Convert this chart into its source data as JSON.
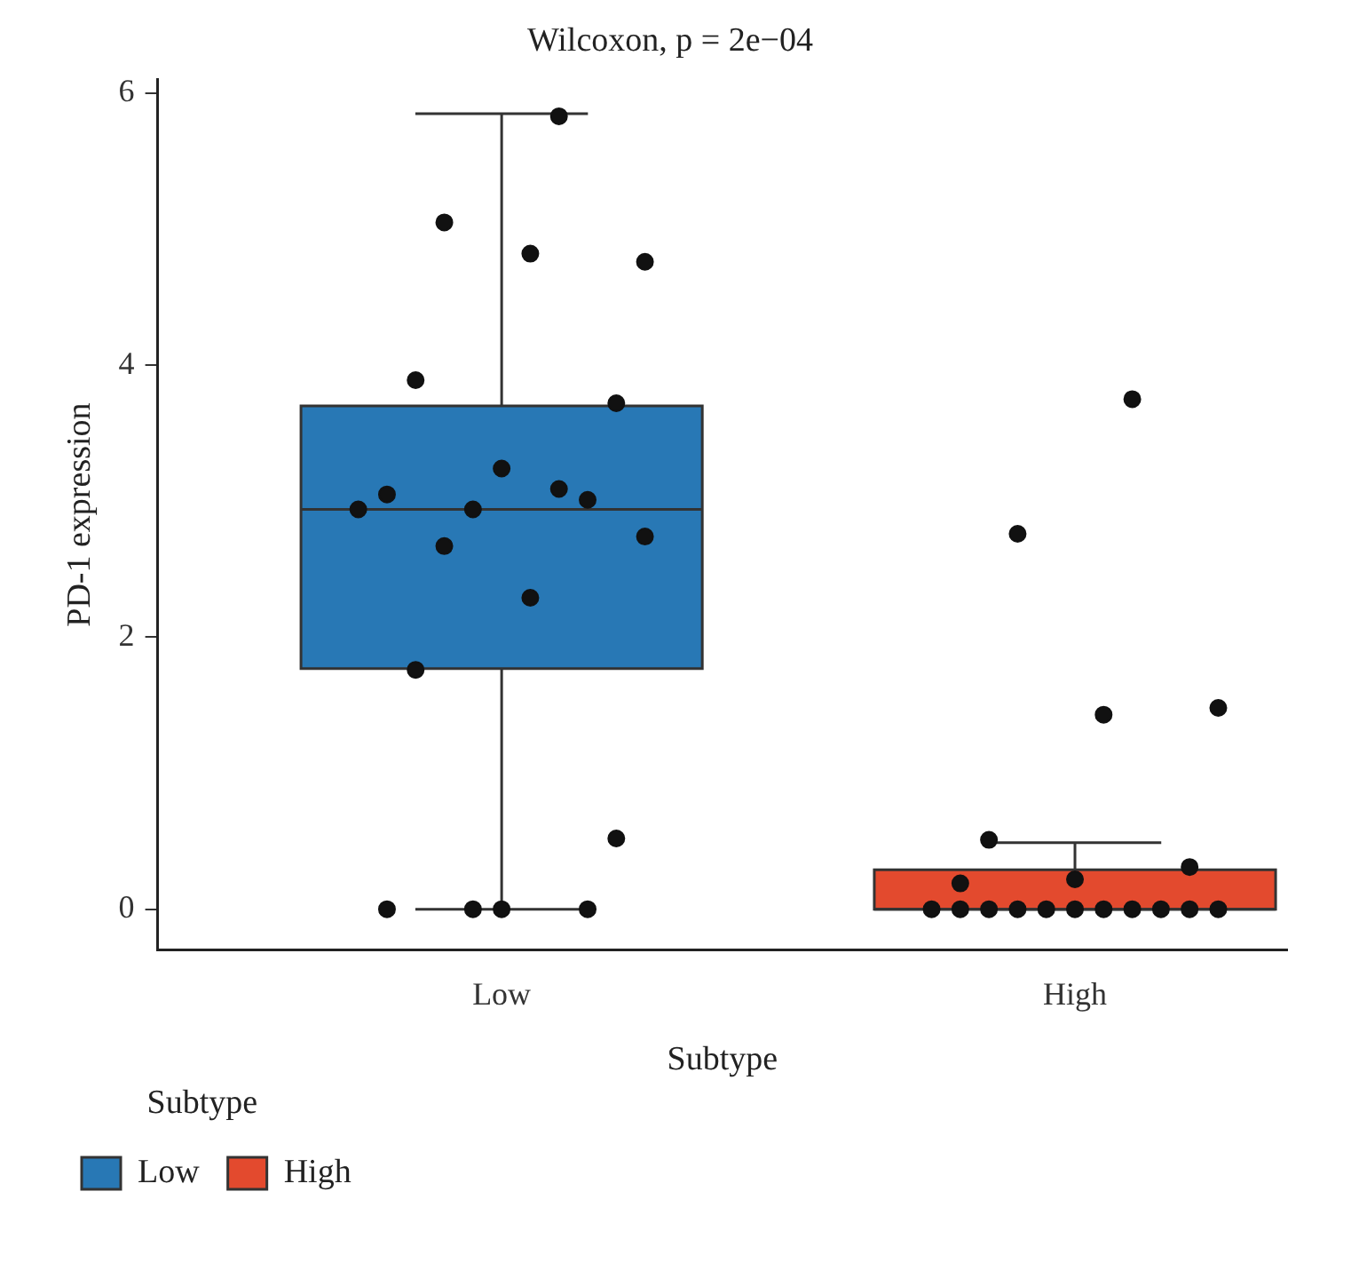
{
  "chart_data": {
    "type": "box",
    "title": "Wilcoxon, p = 2e−04",
    "xlabel": "Subtype",
    "ylabel": "PD-1 expression",
    "legend_title": "Subtype",
    "legend": "bottom left",
    "categories": [
      "Low",
      "High"
    ],
    "series": [
      {
        "name": "Low",
        "color": "#2878b5",
        "boxes": [
          {
            "low": 0,
            "q1": 1.77,
            "median": 2.94,
            "q3": 3.7,
            "high": 5.85
          },
          null
        ]
      },
      {
        "name": "High",
        "color": "#e34a2e",
        "boxes": [
          null,
          {
            "low": 0,
            "q1": 0,
            "median": 0,
            "q3": 0.29,
            "high": 0.49
          }
        ]
      },
      {
        "type": "scatter",
        "color": "#111111",
        "x": [
          "Low",
          "Low",
          "Low",
          "Low",
          "Low",
          "Low",
          "Low",
          "Low",
          "Low",
          "Low",
          "Low",
          "Low",
          "Low",
          "Low",
          "Low",
          "Low",
          "Low",
          "Low",
          "Low",
          "Low",
          "Low",
          "High",
          "High",
          "High",
          "High",
          "High",
          "High",
          "High",
          "High",
          "High",
          "High",
          "High",
          "High",
          "High",
          "High",
          "High",
          "High",
          "High",
          "High",
          "High"
        ],
        "values": [
          5.83,
          5.05,
          4.76,
          4.82,
          3.89,
          3.72,
          3.24,
          3.05,
          3.01,
          2.94,
          2.94,
          3.09,
          2.67,
          2.74,
          2.29,
          1.76,
          0.52,
          0,
          0,
          0,
          0,
          3.75,
          2.76,
          1.48,
          1.43,
          0.51,
          0.31,
          0.22,
          0.19,
          0,
          0,
          0,
          0,
          0,
          0,
          0,
          0,
          0,
          0,
          0
        ]
      }
    ],
    "ylim": [
      -0.3,
      6.1
    ],
    "yticks": [
      0,
      2,
      4,
      6
    ],
    "grid": false,
    "marker": "circle"
  }
}
